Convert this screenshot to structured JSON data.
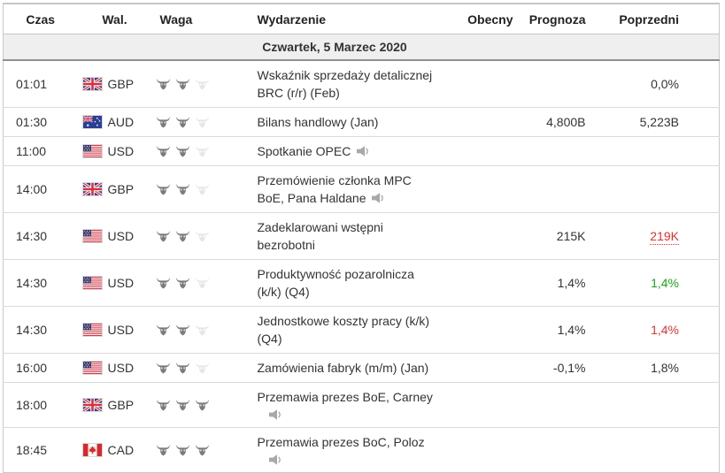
{
  "headers": [
    "Czas",
    "Wal.",
    "Waga",
    "Wydarzenie",
    "Obecny",
    "Prognoza",
    "Poprzedni"
  ],
  "date_header": "Czwartek, 5 Marzec 2020",
  "colors": {
    "positive_green": "#1ca21c",
    "negative_red": "#dd3333",
    "date_row_bg": "#efefef",
    "bull_active": "#7b7b7b",
    "bull_inactive": "#e6e6e6"
  },
  "rows": [
    {
      "time": "01:01",
      "currency": "GBP",
      "flag": "united-kingdom",
      "importance": 2,
      "event_lines": [
        "Wskaźnik sprzedaży detalicznej",
        "BRC (r/r) (Feb)"
      ],
      "speaker": "none",
      "actual": "",
      "forecast": "",
      "previous": "0,0%",
      "previous_color": "default",
      "previous_dotted": false
    },
    {
      "time": "01:30",
      "currency": "AUD",
      "flag": "australia",
      "importance": 2,
      "event_lines": [
        "Bilans handlowy (Jan)"
      ],
      "speaker": "none",
      "actual": "",
      "forecast": "4,800B",
      "previous": "5,223B",
      "previous_color": "default",
      "previous_dotted": false
    },
    {
      "time": "11:00",
      "currency": "USD",
      "flag": "united-states",
      "importance": 2,
      "event_lines": [
        "Spotkanie OPEC"
      ],
      "speaker": "inline",
      "actual": "",
      "forecast": "",
      "previous": "",
      "previous_color": "default",
      "previous_dotted": false
    },
    {
      "time": "14:00",
      "currency": "GBP",
      "flag": "united-kingdom",
      "importance": 2,
      "event_lines": [
        "Przemówienie członka MPC",
        "BoE, Pana Haldane"
      ],
      "speaker": "inline",
      "actual": "",
      "forecast": "",
      "previous": "",
      "previous_color": "default",
      "previous_dotted": false
    },
    {
      "time": "14:30",
      "currency": "USD",
      "flag": "united-states",
      "importance": 2,
      "event_lines": [
        "Zadeklarowani wstępni",
        "bezrobotni"
      ],
      "speaker": "none",
      "actual": "",
      "forecast": "215K",
      "previous": "219K",
      "previous_color": "red",
      "previous_dotted": true
    },
    {
      "time": "14:30",
      "currency": "USD",
      "flag": "united-states",
      "importance": 2,
      "event_lines": [
        "Produktywność pozarolnicza",
        "(k/k) (Q4)"
      ],
      "speaker": "none",
      "actual": "",
      "forecast": "1,4%",
      "previous": "1,4%",
      "previous_color": "green",
      "previous_dotted": false
    },
    {
      "time": "14:30",
      "currency": "USD",
      "flag": "united-states",
      "importance": 2,
      "event_lines": [
        "Jednostkowe koszty pracy (k/k)",
        "(Q4)"
      ],
      "speaker": "none",
      "actual": "",
      "forecast": "1,4%",
      "previous": "1,4%",
      "previous_color": "red",
      "previous_dotted": false
    },
    {
      "time": "16:00",
      "currency": "USD",
      "flag": "united-states",
      "importance": 2,
      "event_lines": [
        "Zamówienia fabryk (m/m) (Jan)"
      ],
      "speaker": "none",
      "actual": "",
      "forecast": "-0,1%",
      "previous": "1,8%",
      "previous_color": "default",
      "previous_dotted": false
    },
    {
      "time": "18:00",
      "currency": "GBP",
      "flag": "united-kingdom",
      "importance": 3,
      "event_lines": [
        "Przemawia prezes BoE, Carney"
      ],
      "speaker": "newline",
      "actual": "",
      "forecast": "",
      "previous": "",
      "previous_color": "default",
      "previous_dotted": false
    },
    {
      "time": "18:45",
      "currency": "CAD",
      "flag": "canada",
      "importance": 3,
      "event_lines": [
        "Przemawia prezes BoC, Poloz"
      ],
      "speaker": "newline",
      "actual": "",
      "forecast": "",
      "previous": "",
      "previous_color": "default",
      "previous_dotted": false
    }
  ]
}
